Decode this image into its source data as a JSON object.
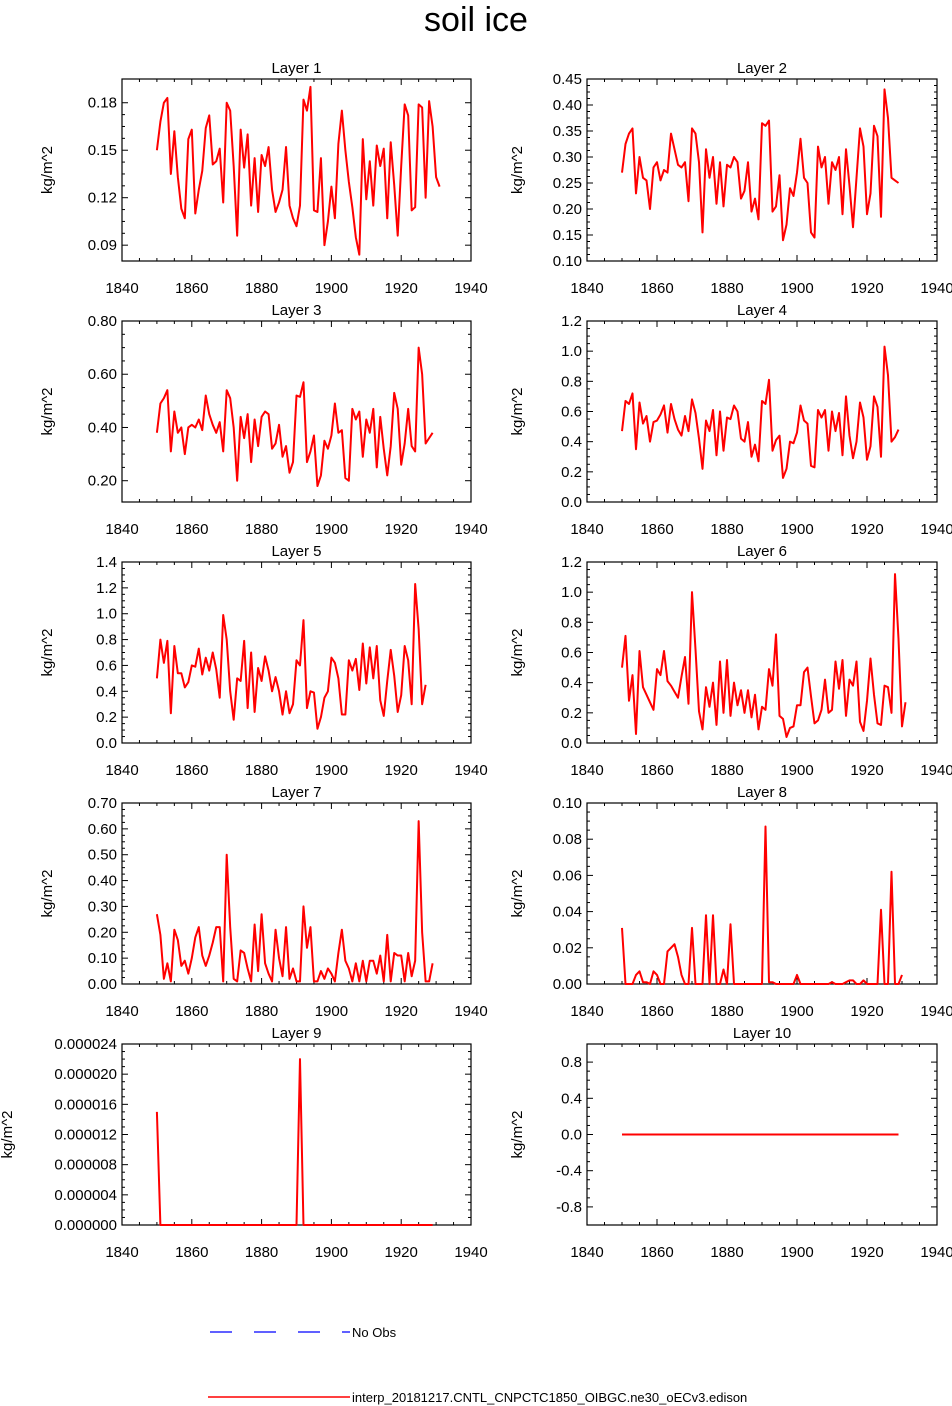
{
  "title": "soil ice",
  "legend": {
    "obs_label": "No Obs",
    "obs_color": "#0000ff",
    "model_label": "interp_20181217.CNTL_CNPCTC1850_OIBGC.ne30_oECv3.edison",
    "model_color": "#ff0000"
  },
  "chart_data": [
    {
      "type": "line",
      "title": "Layer 1",
      "ylabel": "kg/m^2",
      "xlim": [
        1840,
        1940
      ],
      "xticks": [
        1840,
        1860,
        1880,
        1900,
        1920,
        1940
      ],
      "ylim": [
        0.08,
        0.195
      ],
      "yticks": [
        0.09,
        0.12,
        0.15,
        0.18
      ],
      "ytick_labels": [
        "0.09",
        "0.12",
        "0.15",
        "0.18"
      ],
      "x_start": 1850,
      "values": [
        0.15,
        0.168,
        0.18,
        0.183,
        0.135,
        0.162,
        0.133,
        0.113,
        0.107,
        0.157,
        0.163,
        0.11,
        0.125,
        0.137,
        0.164,
        0.172,
        0.141,
        0.143,
        0.151,
        0.117,
        0.18,
        0.175,
        0.14,
        0.096,
        0.163,
        0.139,
        0.16,
        0.115,
        0.145,
        0.111,
        0.147,
        0.14,
        0.152,
        0.125,
        0.111,
        0.117,
        0.125,
        0.152,
        0.115,
        0.107,
        0.102,
        0.115,
        0.182,
        0.175,
        0.19,
        0.112,
        0.111,
        0.145,
        0.09,
        0.105,
        0.127,
        0.107,
        0.154,
        0.175,
        0.15,
        0.13,
        0.114,
        0.095,
        0.084,
        0.157,
        0.119,
        0.143,
        0.115,
        0.153,
        0.14,
        0.151,
        0.107,
        0.155,
        0.128,
        0.096,
        0.14,
        0.179,
        0.172,
        0.112,
        0.114,
        0.179,
        0.177,
        0.12,
        0.181,
        0.165,
        0.133,
        0.127
      ]
    },
    {
      "type": "line",
      "title": "Layer 2",
      "ylabel": "kg/m^2",
      "xlim": [
        1840,
        1940
      ],
      "xticks": [
        1840,
        1860,
        1880,
        1900,
        1920,
        1940
      ],
      "ylim": [
        0.1,
        0.45
      ],
      "yticks": [
        0.1,
        0.15,
        0.2,
        0.25,
        0.3,
        0.35,
        0.4,
        0.45
      ],
      "ytick_labels": [
        "0.10",
        "0.15",
        "0.20",
        "0.25",
        "0.30",
        "0.35",
        "0.40",
        "0.45"
      ],
      "x_start": 1850,
      "values": [
        0.27,
        0.325,
        0.345,
        0.355,
        0.23,
        0.3,
        0.26,
        0.255,
        0.2,
        0.28,
        0.29,
        0.255,
        0.275,
        0.27,
        0.345,
        0.315,
        0.285,
        0.28,
        0.29,
        0.215,
        0.355,
        0.345,
        0.29,
        0.155,
        0.315,
        0.26,
        0.3,
        0.21,
        0.29,
        0.205,
        0.285,
        0.28,
        0.3,
        0.29,
        0.22,
        0.235,
        0.29,
        0.195,
        0.22,
        0.18,
        0.365,
        0.36,
        0.37,
        0.195,
        0.205,
        0.265,
        0.14,
        0.17,
        0.24,
        0.225,
        0.27,
        0.335,
        0.26,
        0.25,
        0.155,
        0.145,
        0.32,
        0.28,
        0.3,
        0.21,
        0.29,
        0.275,
        0.3,
        0.19,
        0.315,
        0.245,
        0.165,
        0.26,
        0.355,
        0.32,
        0.19,
        0.23,
        0.36,
        0.34,
        0.185,
        0.43,
        0.375,
        0.26,
        0.255,
        0.25
      ]
    },
    {
      "type": "line",
      "title": "Layer 3",
      "ylabel": "kg/m^2",
      "xlim": [
        1840,
        1940
      ],
      "xticks": [
        1840,
        1860,
        1880,
        1900,
        1920,
        1940
      ],
      "ylim": [
        0.12,
        0.8
      ],
      "yticks": [
        0.2,
        0.4,
        0.6,
        0.8
      ],
      "ytick_labels": [
        "0.20",
        "0.40",
        "0.60",
        "0.80"
      ],
      "x_start": 1850,
      "values": [
        0.38,
        0.49,
        0.51,
        0.54,
        0.31,
        0.46,
        0.38,
        0.4,
        0.3,
        0.4,
        0.41,
        0.4,
        0.43,
        0.39,
        0.52,
        0.45,
        0.41,
        0.38,
        0.42,
        0.31,
        0.54,
        0.51,
        0.4,
        0.2,
        0.44,
        0.36,
        0.45,
        0.27,
        0.43,
        0.33,
        0.44,
        0.46,
        0.45,
        0.32,
        0.34,
        0.41,
        0.29,
        0.33,
        0.23,
        0.27,
        0.52,
        0.515,
        0.57,
        0.27,
        0.31,
        0.37,
        0.18,
        0.22,
        0.35,
        0.32,
        0.37,
        0.49,
        0.38,
        0.39,
        0.21,
        0.2,
        0.47,
        0.43,
        0.46,
        0.29,
        0.43,
        0.38,
        0.47,
        0.25,
        0.44,
        0.32,
        0.22,
        0.33,
        0.53,
        0.47,
        0.26,
        0.34,
        0.47,
        0.33,
        0.31,
        0.7,
        0.6,
        0.34,
        0.36,
        0.38
      ]
    },
    {
      "type": "line",
      "title": "Layer 4",
      "ylabel": "kg/m^2",
      "xlim": [
        1840,
        1940
      ],
      "xticks": [
        1840,
        1860,
        1880,
        1900,
        1920,
        1940
      ],
      "ylim": [
        0.0,
        1.2
      ],
      "yticks": [
        0.0,
        0.2,
        0.4,
        0.6,
        0.8,
        1.0,
        1.2
      ],
      "ytick_labels": [
        "0.0",
        "0.2",
        "0.4",
        "0.6",
        "0.8",
        "1.0",
        "1.2"
      ],
      "x_start": 1850,
      "values": [
        0.47,
        0.67,
        0.65,
        0.72,
        0.35,
        0.66,
        0.52,
        0.57,
        0.4,
        0.53,
        0.54,
        0.58,
        0.64,
        0.46,
        0.65,
        0.55,
        0.48,
        0.44,
        0.57,
        0.47,
        0.68,
        0.59,
        0.42,
        0.22,
        0.54,
        0.47,
        0.61,
        0.31,
        0.6,
        0.34,
        0.56,
        0.55,
        0.64,
        0.6,
        0.42,
        0.4,
        0.53,
        0.3,
        0.38,
        0.27,
        0.67,
        0.65,
        0.81,
        0.34,
        0.41,
        0.44,
        0.16,
        0.22,
        0.4,
        0.39,
        0.46,
        0.64,
        0.54,
        0.52,
        0.24,
        0.23,
        0.61,
        0.56,
        0.61,
        0.34,
        0.6,
        0.47,
        0.59,
        0.31,
        0.7,
        0.44,
        0.29,
        0.4,
        0.66,
        0.56,
        0.28,
        0.37,
        0.7,
        0.63,
        0.3,
        1.03,
        0.84,
        0.4,
        0.43,
        0.48
      ]
    },
    {
      "type": "line",
      "title": "Layer 5",
      "ylabel": "kg/m^2",
      "xlim": [
        1840,
        1940
      ],
      "xticks": [
        1840,
        1860,
        1880,
        1900,
        1920,
        1940
      ],
      "ylim": [
        0.0,
        1.4
      ],
      "yticks": [
        0.0,
        0.2,
        0.4,
        0.6,
        0.8,
        1.0,
        1.2,
        1.4
      ],
      "ytick_labels": [
        "0.0",
        "0.2",
        "0.4",
        "0.6",
        "0.8",
        "1.0",
        "1.2",
        "1.4"
      ],
      "x_start": 1850,
      "values": [
        0.5,
        0.8,
        0.62,
        0.79,
        0.23,
        0.75,
        0.54,
        0.54,
        0.43,
        0.47,
        0.6,
        0.59,
        0.73,
        0.53,
        0.66,
        0.56,
        0.7,
        0.57,
        0.35,
        0.99,
        0.8,
        0.4,
        0.18,
        0.5,
        0.48,
        0.79,
        0.27,
        0.7,
        0.24,
        0.58,
        0.48,
        0.67,
        0.56,
        0.4,
        0.51,
        0.4,
        0.22,
        0.4,
        0.23,
        0.3,
        0.64,
        0.6,
        0.95,
        0.27,
        0.4,
        0.39,
        0.11,
        0.2,
        0.35,
        0.4,
        0.66,
        0.62,
        0.5,
        0.22,
        0.22,
        0.64,
        0.56,
        0.65,
        0.41,
        0.77,
        0.46,
        0.74,
        0.5,
        0.75,
        0.33,
        0.21,
        0.48,
        0.72,
        0.52,
        0.24,
        0.37,
        0.75,
        0.64,
        0.3,
        1.23,
        0.88,
        0.3,
        0.45
      ]
    },
    {
      "type": "line",
      "title": "Layer 6",
      "ylabel": "kg/m^2",
      "xlim": [
        1840,
        1940
      ],
      "xticks": [
        1840,
        1860,
        1880,
        1900,
        1920,
        1940
      ],
      "ylim": [
        0.0,
        1.2
      ],
      "yticks": [
        0.0,
        0.2,
        0.4,
        0.6,
        0.8,
        1.0,
        1.2
      ],
      "ytick_labels": [
        "0.0",
        "0.2",
        "0.4",
        "0.6",
        "0.8",
        "1.0",
        "1.2"
      ],
      "x_start": 1850,
      "values": [
        0.5,
        0.71,
        0.28,
        0.45,
        0.06,
        0.61,
        0.37,
        0.32,
        0.27,
        0.22,
        0.49,
        0.45,
        0.61,
        0.41,
        0.38,
        0.34,
        0.3,
        0.44,
        0.57,
        0.26,
        1.0,
        0.62,
        0.21,
        0.09,
        0.37,
        0.24,
        0.4,
        0.12,
        0.54,
        0.2,
        0.55,
        0.18,
        0.4,
        0.25,
        0.35,
        0.2,
        0.35,
        0.17,
        0.32,
        0.09,
        0.24,
        0.22,
        0.49,
        0.38,
        0.72,
        0.18,
        0.16,
        0.04,
        0.1,
        0.11,
        0.25,
        0.25,
        0.47,
        0.5,
        0.31,
        0.13,
        0.15,
        0.22,
        0.42,
        0.2,
        0.22,
        0.54,
        0.36,
        0.55,
        0.18,
        0.42,
        0.38,
        0.54,
        0.14,
        0.08,
        0.28,
        0.56,
        0.32,
        0.13,
        0.12,
        0.38,
        0.37,
        0.2,
        1.12,
        0.69,
        0.11,
        0.27
      ]
    },
    {
      "type": "line",
      "title": "Layer 7",
      "ylabel": "kg/m^2",
      "xlim": [
        1840,
        1940
      ],
      "xticks": [
        1840,
        1860,
        1880,
        1900,
        1920,
        1940
      ],
      "ylim": [
        0.0,
        0.7
      ],
      "yticks": [
        0.0,
        0.1,
        0.2,
        0.3,
        0.4,
        0.5,
        0.6,
        0.7
      ],
      "ytick_labels": [
        "0.00",
        "0.10",
        "0.20",
        "0.30",
        "0.40",
        "0.50",
        "0.60",
        "0.70"
      ],
      "x_start": 1850,
      "values": [
        0.27,
        0.19,
        0.02,
        0.08,
        0.01,
        0.21,
        0.17,
        0.07,
        0.09,
        0.04,
        0.1,
        0.18,
        0.22,
        0.11,
        0.07,
        0.11,
        0.16,
        0.22,
        0.22,
        0.01,
        0.5,
        0.22,
        0.02,
        0.01,
        0.13,
        0.12,
        0.06,
        0.01,
        0.23,
        0.05,
        0.27,
        0.08,
        0.04,
        0.01,
        0.21,
        0.1,
        0.03,
        0.22,
        0.02,
        0.06,
        0.01,
        0.01,
        0.3,
        0.14,
        0.22,
        0.01,
        0.01,
        0.05,
        0.02,
        0.06,
        0.04,
        0.01,
        0.12,
        0.21,
        0.09,
        0.06,
        0.01,
        0.08,
        0.01,
        0.09,
        0.01,
        0.09,
        0.09,
        0.04,
        0.11,
        0.01,
        0.19,
        0.01,
        0.12,
        0.11,
        0.11,
        0.01,
        0.12,
        0.03,
        0.09,
        0.63,
        0.2,
        0.01,
        0.01,
        0.08
      ]
    },
    {
      "type": "line",
      "title": "Layer 8",
      "ylabel": "kg/m^2",
      "xlim": [
        1840,
        1940
      ],
      "xticks": [
        1840,
        1860,
        1880,
        1900,
        1920,
        1940
      ],
      "ylim": [
        0.0,
        0.1
      ],
      "yticks": [
        0.0,
        0.02,
        0.04,
        0.06,
        0.08,
        0.1
      ],
      "ytick_labels": [
        "0.00",
        "0.02",
        "0.04",
        "0.06",
        "0.08",
        "0.10"
      ],
      "x_start": 1850,
      "values": [
        0.031,
        0.0,
        0.0,
        0.0,
        0.005,
        0.007,
        0.001,
        0.001,
        0.0,
        0.007,
        0.005,
        0.0,
        0.0,
        0.018,
        0.02,
        0.022,
        0.015,
        0.005,
        0.0,
        0.0,
        0.031,
        0.0,
        0.0,
        0.0,
        0.038,
        0.0,
        0.038,
        0.0,
        0.0,
        0.008,
        0.0,
        0.033,
        0.0,
        0.0,
        0.0,
        0.0,
        0.0,
        0.0,
        0.0,
        0.0,
        0.0,
        0.087,
        0.001,
        0.001,
        0.0,
        0.0,
        0.0,
        0.0,
        0.0,
        0.0,
        0.005,
        0.0,
        0.0,
        0.0,
        0.0,
        0.0,
        0.0,
        0.0,
        0.0,
        0.0,
        0.001,
        0.0,
        0.0,
        0.0,
        0.001,
        0.002,
        0.002,
        0.0,
        0.0,
        0.002,
        0.0,
        0.0,
        0.0,
        0.0,
        0.041,
        0.0,
        0.0,
        0.062,
        0.0,
        0.0,
        0.005
      ]
    },
    {
      "type": "line",
      "title": "Layer 9",
      "ylabel": "kg/m^2",
      "xlim": [
        1840,
        1940
      ],
      "xticks": [
        1840,
        1860,
        1880,
        1900,
        1920,
        1940
      ],
      "ylim": [
        0.0,
        2.4e-05
      ],
      "yticks": [
        0.0,
        4e-06,
        8e-06,
        1.2e-05,
        1.6e-05,
        2e-05,
        2.4e-05
      ],
      "ytick_labels": [
        "0.000000",
        "0.000004",
        "0.000008",
        "0.000012",
        "0.000016",
        "0.000020",
        "0.000024"
      ],
      "x_start": 1850,
      "values": [
        1.5e-05,
        0,
        0,
        0,
        0,
        0,
        0,
        0,
        0,
        0,
        0,
        0,
        0,
        0,
        0,
        0,
        0,
        0,
        0,
        0,
        0,
        0,
        0,
        0,
        0,
        0,
        0,
        0,
        0,
        0,
        0,
        0,
        0,
        0,
        0,
        0,
        0,
        0,
        0,
        0,
        0,
        2.2e-05,
        0,
        0,
        0,
        0,
        0,
        0,
        0,
        0,
        0,
        0,
        0,
        0,
        0,
        0,
        0,
        0,
        0,
        0,
        0,
        0,
        0,
        0,
        0,
        0,
        0,
        0,
        0,
        0,
        0,
        0,
        0,
        0,
        0,
        0,
        0,
        0,
        0,
        0
      ]
    },
    {
      "type": "line",
      "title": "Layer 10",
      "ylabel": "kg/m^2",
      "xlim": [
        1840,
        1940
      ],
      "xticks": [
        1840,
        1860,
        1880,
        1900,
        1920,
        1940
      ],
      "ylim": [
        -1.0,
        1.0
      ],
      "yticks": [
        -0.8,
        -0.4,
        0.0,
        0.4,
        0.8
      ],
      "ytick_labels": [
        "-0.8",
        "-0.4",
        "0.0",
        "0.4",
        "0.8"
      ],
      "x_start": 1850,
      "values": [
        0,
        0,
        0,
        0,
        0,
        0,
        0,
        0,
        0,
        0,
        0,
        0,
        0,
        0,
        0,
        0,
        0,
        0,
        0,
        0,
        0,
        0,
        0,
        0,
        0,
        0,
        0,
        0,
        0,
        0,
        0,
        0,
        0,
        0,
        0,
        0,
        0,
        0,
        0,
        0,
        0,
        0,
        0,
        0,
        0,
        0,
        0,
        0,
        0,
        0,
        0,
        0,
        0,
        0,
        0,
        0,
        0,
        0,
        0,
        0,
        0,
        0,
        0,
        0,
        0,
        0,
        0,
        0,
        0,
        0,
        0,
        0,
        0,
        0,
        0,
        0,
        0,
        0,
        0,
        0
      ]
    }
  ]
}
